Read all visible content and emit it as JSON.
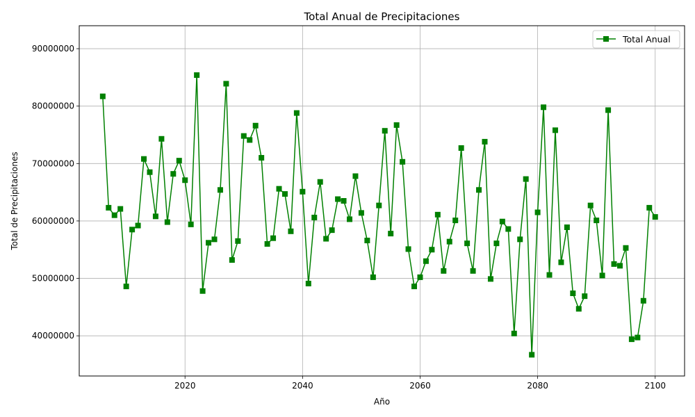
{
  "chart_data": {
    "type": "line",
    "title": "Total Anual de Precipitaciones",
    "xlabel": "Año",
    "ylabel": "Total de Precipitaciones",
    "xlim": [
      2002,
      2105
    ],
    "ylim": [
      33000000,
      94000000
    ],
    "x_ticks": [
      2020,
      2040,
      2060,
      2080,
      2100
    ],
    "y_ticks": [
      40000000,
      50000000,
      60000000,
      70000000,
      80000000,
      90000000
    ],
    "grid": true,
    "legend_position": "top-right",
    "series": [
      {
        "name": "Total Anual",
        "color": "#008000",
        "marker": "square",
        "x": [
          2006,
          2007,
          2008,
          2009,
          2010,
          2011,
          2012,
          2013,
          2014,
          2015,
          2016,
          2017,
          2018,
          2019,
          2020,
          2021,
          2022,
          2023,
          2024,
          2025,
          2026,
          2027,
          2028,
          2029,
          2030,
          2031,
          2032,
          2033,
          2034,
          2035,
          2036,
          2037,
          2038,
          2039,
          2040,
          2041,
          2042,
          2043,
          2044,
          2045,
          2046,
          2047,
          2048,
          2049,
          2050,
          2051,
          2052,
          2053,
          2054,
          2055,
          2056,
          2057,
          2058,
          2059,
          2060,
          2061,
          2062,
          2063,
          2064,
          2065,
          2066,
          2067,
          2068,
          2069,
          2070,
          2071,
          2072,
          2073,
          2074,
          2075,
          2076,
          2077,
          2078,
          2079,
          2080,
          2081,
          2082,
          2083,
          2084,
          2085,
          2086,
          2087,
          2088,
          2089,
          2090,
          2091,
          2092,
          2093,
          2094,
          2095,
          2096,
          2097,
          2098,
          2099,
          2100
        ],
        "values": [
          81700000,
          62300000,
          61000000,
          62100000,
          48600000,
          58500000,
          59200000,
          70800000,
          68500000,
          60800000,
          74300000,
          59800000,
          68200000,
          70500000,
          67100000,
          59400000,
          85400000,
          47800000,
          56200000,
          56800000,
          65400000,
          83900000,
          53200000,
          56500000,
          74800000,
          74100000,
          76600000,
          71000000,
          56000000,
          57000000,
          65600000,
          64700000,
          58200000,
          78800000,
          65100000,
          49100000,
          60600000,
          66800000,
          56900000,
          58400000,
          63800000,
          63500000,
          60300000,
          67800000,
          61400000,
          56600000,
          50200000,
          62700000,
          75700000,
          57800000,
          76700000,
          70300000,
          55100000,
          48600000,
          50200000,
          53000000,
          55000000,
          61100000,
          51300000,
          56400000,
          60100000,
          72700000,
          56100000,
          51300000,
          65400000,
          73800000,
          49900000,
          56100000,
          59900000,
          58600000,
          40400000,
          56800000,
          67300000,
          36700000,
          61500000,
          79800000,
          50600000,
          75800000,
          52800000,
          58900000,
          47400000,
          44700000,
          46900000,
          62700000,
          60100000,
          50500000,
          79300000,
          52500000,
          52200000,
          55300000,
          39400000,
          39700000,
          46100000,
          62300000,
          60700000
        ]
      }
    ]
  }
}
